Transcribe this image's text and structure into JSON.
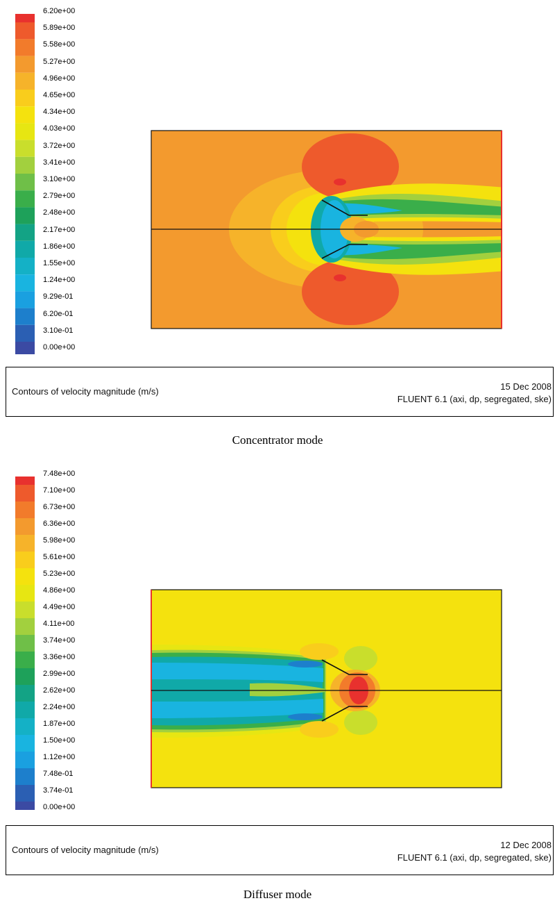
{
  "figures": [
    {
      "legend_values": [
        "6.20e+00",
        "5.89e+00",
        "5.58e+00",
        "5.27e+00",
        "4.96e+00",
        "4.65e+00",
        "4.34e+00",
        "4.03e+00",
        "3.72e+00",
        "3.41e+00",
        "3.10e+00",
        "2.79e+00",
        "2.48e+00",
        "2.17e+00",
        "1.86e+00",
        "1.55e+00",
        "1.24e+00",
        "9.29e-01",
        "6.20e-01",
        "3.10e-01",
        "0.00e+00"
      ],
      "info": {
        "title": "Contours of velocity magnitude (m/s)",
        "date": "15 Dec 2008",
        "solver": "FLUENT 6.1 (axi, dp, segregated, ske)"
      },
      "caption": "Concentrator mode",
      "background_color": "#f39a2e"
    },
    {
      "legend_values": [
        "7.48e+00",
        "7.10e+00",
        "6.73e+00",
        "6.36e+00",
        "5.98e+00",
        "5.61e+00",
        "5.23e+00",
        "4.86e+00",
        "4.49e+00",
        "4.11e+00",
        "3.74e+00",
        "3.36e+00",
        "2.99e+00",
        "2.62e+00",
        "2.24e+00",
        "1.87e+00",
        "1.50e+00",
        "1.12e+00",
        "7.48e-01",
        "3.74e-01",
        "0.00e+00"
      ],
      "info": {
        "title": "Contours of velocity magnitude (m/s)",
        "date": "12 Dec 2008",
        "solver": "FLUENT 6.1 (axi, dp, segregated, ske)"
      },
      "caption": "Diffuser mode",
      "background_color": "#f4e20e"
    }
  ],
  "colormap": [
    "#e8312e",
    "#ee5a2c",
    "#f27b2b",
    "#f39a2e",
    "#f6b32a",
    "#f9cd1c",
    "#f4e20e",
    "#e7e612",
    "#c9de2c",
    "#a2d03e",
    "#6fbf48",
    "#3aae4a",
    "#1ea15a",
    "#13a385",
    "#10a9a8",
    "#14b1c6",
    "#19b4e0",
    "#1aa0e0",
    "#1d7fcc",
    "#2b5fb3",
    "#3b4aa3"
  ]
}
